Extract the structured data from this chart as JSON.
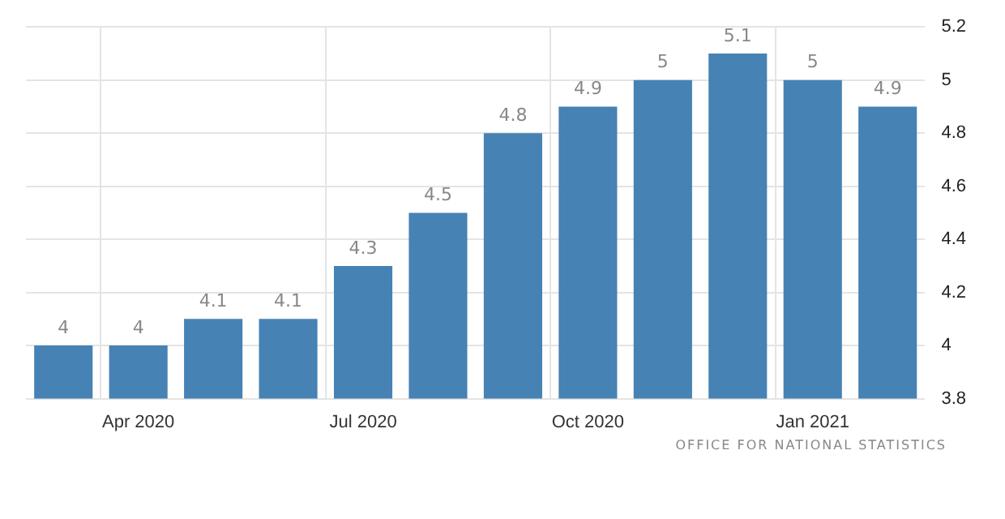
{
  "chart_data": {
    "type": "bar",
    "categories": [
      null,
      "Apr 2020",
      null,
      null,
      "Jul 2020",
      null,
      null,
      "Oct 2020",
      null,
      null,
      "Jan 2021",
      null
    ],
    "values": [
      4,
      4,
      4.1,
      4.1,
      4.3,
      4.5,
      4.8,
      4.9,
      5,
      5.1,
      5,
      4.9
    ],
    "color": "#4682b4",
    "ylim": [
      3.8,
      5.2
    ],
    "yticks": [
      3.8,
      4,
      4.2,
      4.4,
      4.6,
      4.8,
      5,
      5.2
    ],
    "grid": true,
    "legend": false,
    "data_labels": true,
    "annotations": [
      "OFFICE FOR NATIONAL STATISTICS"
    ]
  }
}
